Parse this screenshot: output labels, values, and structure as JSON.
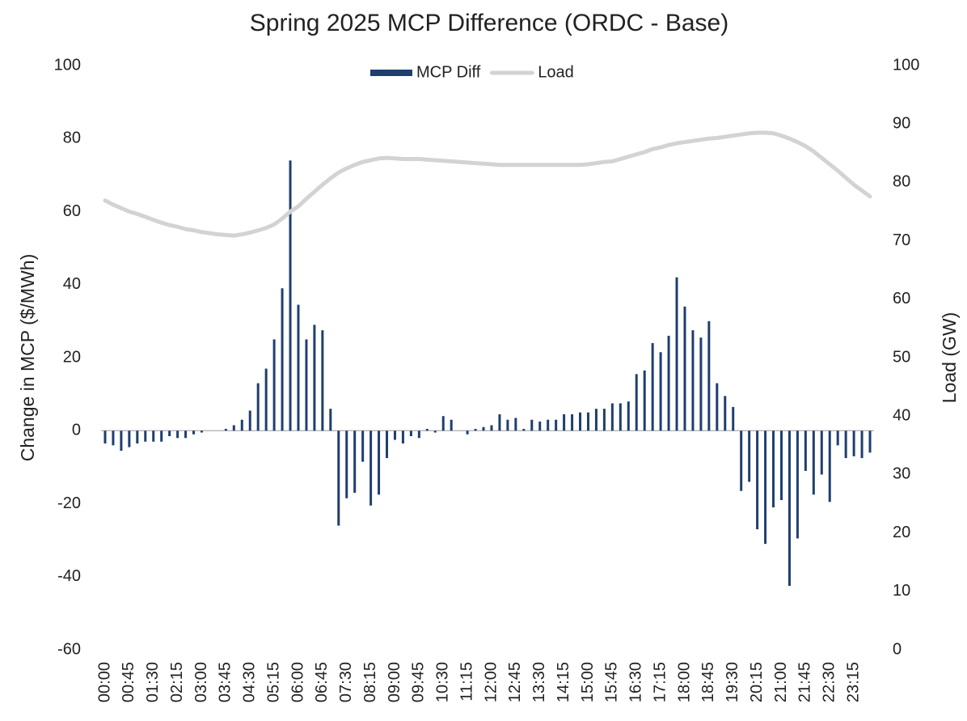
{
  "chart_data": {
    "type": "bar-line",
    "title": "Spring 2025 MCP Difference (ORDC - Base)",
    "y_label": "Change in MCP ($/MWh)",
    "y2_label": "Load (GW)",
    "categories": [
      "00:00",
      null,
      null,
      "00:45",
      null,
      null,
      "01:30",
      null,
      null,
      "02:15",
      null,
      null,
      "03:00",
      null,
      null,
      "03:45",
      null,
      null,
      "04:30",
      null,
      null,
      "05:15",
      null,
      null,
      "06:00",
      null,
      null,
      "06:45",
      null,
      null,
      "07:30",
      null,
      null,
      "08:15",
      null,
      null,
      "09:00",
      null,
      null,
      "09:45",
      null,
      null,
      "10:30",
      null,
      null,
      "11:15",
      null,
      null,
      "12:00",
      null,
      null,
      "12:45",
      null,
      null,
      "13:30",
      null,
      null,
      "14:15",
      null,
      null,
      "15:00",
      null,
      null,
      "15:45",
      null,
      null,
      "16:30",
      null,
      null,
      "17:15",
      null,
      null,
      "18:00",
      null,
      null,
      "18:45",
      null,
      null,
      "19:30",
      null,
      null,
      "20:15",
      null,
      null,
      "21:00",
      null,
      null,
      "21:45",
      null,
      null,
      "22:30",
      null,
      null,
      "23:15",
      null,
      null
    ],
    "series": [
      {
        "name": "MCP Diff",
        "color": "#1f3f6e",
        "type": "bar",
        "values": [
          -3.5,
          -4,
          -5.5,
          -4.5,
          -3.5,
          -3,
          -3,
          -3,
          -1.5,
          -2,
          -2,
          -1,
          -0.5,
          0,
          0,
          0.5,
          1.5,
          3,
          5.5,
          13,
          17,
          25,
          39,
          74,
          34.5,
          25,
          29,
          27.5,
          6,
          -26,
          -18.5,
          -17,
          -8.5,
          -20.5,
          -17.5,
          -7.5,
          -2.5,
          -3.5,
          -1.5,
          -2,
          0.5,
          -0.5,
          4,
          3,
          0,
          -1,
          0.5,
          1,
          1.5,
          4.5,
          3,
          3.5,
          0.5,
          3,
          2.5,
          3,
          3,
          4.5,
          4.5,
          5,
          5,
          6,
          6,
          7.5,
          7.5,
          8,
          15.5,
          16.5,
          24,
          21.5,
          26,
          42,
          34,
          27.5,
          25.5,
          30,
          13,
          9.5,
          6.5,
          -16.5,
          -14,
          -27,
          -31,
          -21,
          -19,
          -42.5,
          -29.5,
          -11,
          -17.5,
          -12,
          -19.5,
          -4,
          -7.5,
          -7,
          -7.5,
          -6
        ]
      },
      {
        "name": "Load",
        "color": "#d3d3d3",
        "type": "line",
        "axis": "y2",
        "values": [
          76.9,
          76.2,
          75.6,
          75.0,
          74.6,
          74.1,
          73.6,
          73.1,
          72.7,
          72.4,
          72.0,
          71.8,
          71.5,
          71.3,
          71.1,
          71.0,
          70.9,
          71.1,
          71.4,
          71.8,
          72.2,
          72.8,
          73.8,
          75.0,
          75.9,
          77.2,
          78.4,
          79.6,
          80.7,
          81.7,
          82.4,
          83.0,
          83.5,
          83.8,
          84.1,
          84.2,
          84.1,
          84.0,
          84.0,
          84.0,
          83.9,
          83.8,
          83.7,
          83.6,
          83.5,
          83.4,
          83.3,
          83.2,
          83.1,
          83.0,
          83.0,
          83.0,
          83.0,
          83.0,
          83.0,
          83.0,
          83.0,
          83.0,
          83.0,
          83.0,
          83.1,
          83.3,
          83.5,
          83.6,
          84.0,
          84.4,
          84.8,
          85.2,
          85.7,
          86.0,
          86.4,
          86.7,
          86.9,
          87.1,
          87.3,
          87.5,
          87.6,
          87.8,
          88.0,
          88.2,
          88.4,
          88.5,
          88.5,
          88.4,
          88.0,
          87.5,
          86.9,
          86.2,
          85.3,
          84.2,
          83.1,
          82.0,
          80.8,
          79.6,
          78.6,
          77.6
        ]
      }
    ],
    "ylim": [
      -60,
      100
    ],
    "yticks": [
      -60,
      -40,
      -20,
      0,
      20,
      40,
      60,
      80,
      100
    ],
    "y2lim": [
      0,
      100
    ],
    "y2ticks": [
      0,
      10,
      20,
      30,
      40,
      50,
      60,
      70,
      80,
      90,
      100
    ],
    "legend": "top"
  }
}
